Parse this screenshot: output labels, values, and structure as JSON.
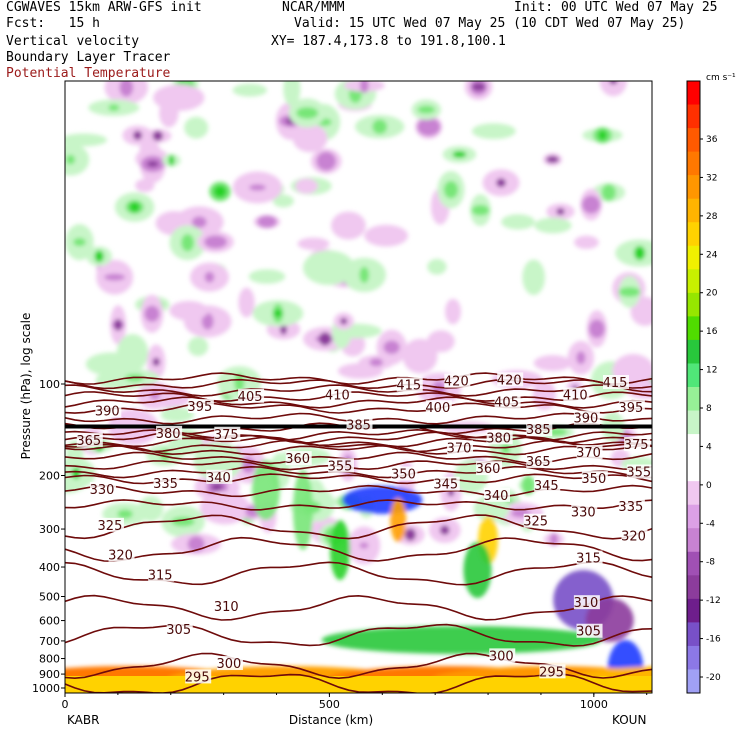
{
  "header": {
    "title_left": "CGWAVES 15km ARW-GFS init",
    "fcst": "Fcst:   15 h",
    "center_title": "NCAR/MMM",
    "init": "Init: 00 UTC Wed 07 May 25",
    "valid": "Valid: 15 UTC Wed 07 May 25 (10 CDT Wed 07 May 25)",
    "field1": "Vertical velocity",
    "field2": "Boundary Layer Tracer",
    "field3": "Potential Temperature",
    "xy": "XY= 187.4,173.8 to 191.8,100.1"
  },
  "colors": {
    "theta_contour": "#6e0b0b",
    "tropopause_line": "#000000",
    "positive_light": "#c8f5c8",
    "positive_mid": "#78e678",
    "positive_strong": "#28d228",
    "negative_light": "#f0c8f0",
    "negative_mid": "#c882d2",
    "negative_strong": "#8c3c9c"
  },
  "chart_data": {
    "type": "heatmap",
    "title": "Vertical velocity",
    "xlabel": "Distance (km)",
    "ylabel": "Pressure (hPa), log scale",
    "x_ticks": [
      0,
      500,
      1000
    ],
    "x_tick_labels": [
      "0",
      "500",
      "1000"
    ],
    "xlim": [
      0,
      1110
    ],
    "ylim_hPa": [
      1000,
      10
    ],
    "y_ticks": [
      100,
      200,
      300,
      400,
      500,
      600,
      700,
      800,
      900,
      1000
    ],
    "y_tick_labels": [
      "100",
      "200",
      "300",
      "400",
      "500",
      "600",
      "700",
      "800",
      "900",
      "1000"
    ],
    "endpoint_labels": {
      "left": "KABR",
      "right": "KOUN"
    },
    "colorbar": {
      "unit": "cm s⁻¹",
      "tick_labels": [
        "36",
        "32",
        "28",
        "24",
        "20",
        "16",
        "12",
        "8",
        "4",
        "0",
        "-4",
        "-8",
        "-12",
        "-16",
        "-20"
      ],
      "ticks": [
        36,
        32,
        28,
        24,
        20,
        16,
        12,
        8,
        4,
        0,
        -4,
        -8,
        -12,
        -16,
        -20
      ],
      "colors": [
        "#ff0000",
        "#ff3000",
        "#ff5a00",
        "#ff7800",
        "#ff9600",
        "#ffb400",
        "#ffd200",
        "#f0f000",
        "#c8f000",
        "#96e600",
        "#50dc00",
        "#28c83c",
        "#50e678",
        "#96f096",
        "#c8f5c8",
        "#ffffff",
        "#ffffff",
        "#f0c8f0",
        "#dca0e6",
        "#c882d2",
        "#a050b4",
        "#8c3c9c",
        "#6e1e8c",
        "#7850c8",
        "#8c78e6",
        "#a0a0f5"
      ]
    },
    "theta_contours": [
      {
        "value": 295,
        "pressure": 970
      },
      {
        "value": 300,
        "pressure": 845
      },
      {
        "value": 305,
        "pressure": 670
      },
      {
        "value": 310,
        "pressure": 545
      },
      {
        "value": 315,
        "pressure": 420
      },
      {
        "value": 320,
        "pressure": 350
      },
      {
        "value": 325,
        "pressure": 295
      },
      {
        "value": 330,
        "pressure": 250
      },
      {
        "value": 335,
        "pressure": 225
      },
      {
        "value": 340,
        "pressure": 205
      },
      {
        "value": 345,
        "pressure": 195
      },
      {
        "value": 350,
        "pressure": 185
      },
      {
        "value": 355,
        "pressure": 175
      },
      {
        "value": 360,
        "pressure": 165
      },
      {
        "value": 365,
        "pressure": 160
      },
      {
        "value": 370,
        "pressure": 155
      },
      {
        "value": 375,
        "pressure": 150
      },
      {
        "value": 380,
        "pressure": 147
      },
      {
        "value": 385,
        "pressure": 140
      },
      {
        "value": 390,
        "pressure": 130
      },
      {
        "value": 395,
        "pressure": 120
      },
      {
        "value": 400,
        "pressure": 115
      },
      {
        "value": 405,
        "pressure": 110
      },
      {
        "value": 410,
        "pressure": 105
      },
      {
        "value": 415,
        "pressure": 100
      },
      {
        "value": 420,
        "pressure": 96
      }
    ],
    "contour_labels": [
      {
        "text": "295",
        "x": 250,
        "p": 930
      },
      {
        "text": "300",
        "x": 310,
        "p": 840
      },
      {
        "text": "305",
        "x": 215,
        "p": 650
      },
      {
        "text": "310",
        "x": 305,
        "p": 545
      },
      {
        "text": "315",
        "x": 180,
        "p": 430
      },
      {
        "text": "320",
        "x": 105,
        "p": 370
      },
      {
        "text": "325",
        "x": 85,
        "p": 295
      },
      {
        "text": "330",
        "x": 70,
        "p": 225
      },
      {
        "text": "335",
        "x": 190,
        "p": 215
      },
      {
        "text": "340",
        "x": 290,
        "p": 205
      },
      {
        "text": "345",
        "x": 720,
        "p": 216
      },
      {
        "text": "350",
        "x": 640,
        "p": 200
      },
      {
        "text": "355",
        "x": 520,
        "p": 188
      },
      {
        "text": "360",
        "x": 440,
        "p": 178
      },
      {
        "text": "365",
        "x": 45,
        "p": 155
      },
      {
        "text": "370",
        "x": 745,
        "p": 164
      },
      {
        "text": "375",
        "x": 305,
        "p": 148
      },
      {
        "text": "380",
        "x": 195,
        "p": 147
      },
      {
        "text": "385",
        "x": 555,
        "p": 138
      },
      {
        "text": "390",
        "x": 80,
        "p": 124
      },
      {
        "text": "395",
        "x": 255,
        "p": 120
      },
      {
        "text": "400",
        "x": 705,
        "p": 121
      },
      {
        "text": "405",
        "x": 350,
        "p": 111
      },
      {
        "text": "410",
        "x": 515,
        "p": 110
      },
      {
        "text": "415",
        "x": 650,
        "p": 102
      },
      {
        "text": "420",
        "x": 740,
        "p": 99
      },
      {
        "text": "420",
        "x": 840,
        "p": 98
      },
      {
        "text": "405",
        "x": 835,
        "p": 116
      },
      {
        "text": "410",
        "x": 965,
        "p": 110
      },
      {
        "text": "415",
        "x": 1040,
        "p": 100
      },
      {
        "text": "390",
        "x": 985,
        "p": 131
      },
      {
        "text": "395",
        "x": 1070,
        "p": 121
      },
      {
        "text": "385",
        "x": 895,
        "p": 143
      },
      {
        "text": "380",
        "x": 820,
        "p": 152
      },
      {
        "text": "375",
        "x": 1080,
        "p": 160
      },
      {
        "text": "370",
        "x": 990,
        "p": 170
      },
      {
        "text": "365",
        "x": 895,
        "p": 182
      },
      {
        "text": "360",
        "x": 800,
        "p": 192
      },
      {
        "text": "355",
        "x": 1085,
        "p": 197
      },
      {
        "text": "350",
        "x": 1000,
        "p": 207
      },
      {
        "text": "345",
        "x": 910,
        "p": 218
      },
      {
        "text": "340",
        "x": 815,
        "p": 235
      },
      {
        "text": "335",
        "x": 1070,
        "p": 256
      },
      {
        "text": "330",
        "x": 980,
        "p": 267
      },
      {
        "text": "325",
        "x": 890,
        "p": 286
      },
      {
        "text": "320",
        "x": 1075,
        "p": 320
      },
      {
        "text": "315",
        "x": 990,
        "p": 378
      },
      {
        "text": "310",
        "x": 985,
        "p": 530
      },
      {
        "text": "305",
        "x": 990,
        "p": 658
      },
      {
        "text": "300",
        "x": 825,
        "p": 793
      },
      {
        "text": "295",
        "x": 920,
        "p": 895
      }
    ],
    "tropopause_pressure": 150
  }
}
